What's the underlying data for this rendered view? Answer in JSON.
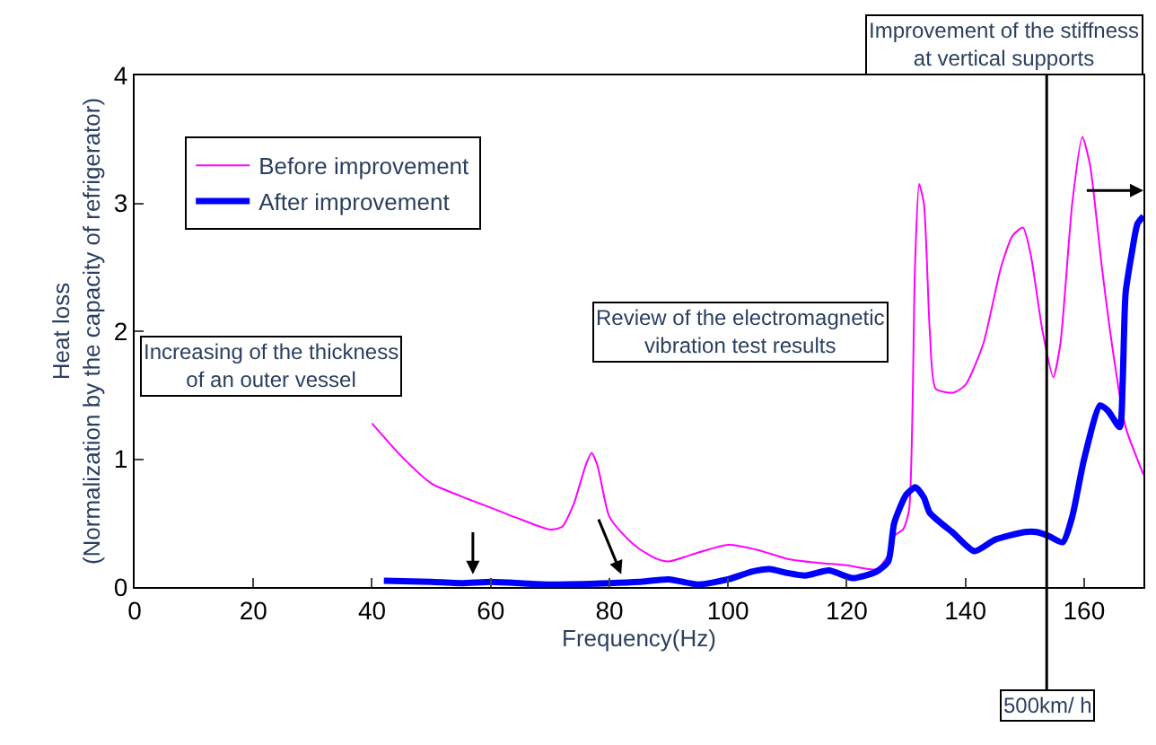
{
  "chart_data": {
    "type": "line",
    "xlabel": "Frequency(Hz)",
    "ylabel": "Heat loss\n(Normalization by the capacity of refrigerator)",
    "xlim": [
      0,
      170
    ],
    "xticks": [
      0,
      20,
      40,
      60,
      80,
      100,
      120,
      140,
      160
    ],
    "ylim": [
      0,
      4
    ],
    "yticks": [
      0,
      1,
      2,
      3,
      4
    ],
    "grid": false,
    "legend": "top left",
    "marker": "none",
    "line_style": "solid",
    "series": [
      {
        "name": "Before improvement",
        "color": "#ff00ff",
        "x": [
          40,
          45,
          50,
          55,
          60,
          65,
          70,
          72,
          74,
          76,
          77,
          78,
          80,
          83,
          85,
          88,
          90,
          95,
          100,
          105,
          110,
          115,
          120,
          125,
          127,
          128,
          129.5,
          130.5,
          131.5,
          132.2,
          133,
          134,
          135,
          138,
          140,
          143,
          146,
          148,
          149.7,
          151,
          153,
          154.8,
          156,
          158,
          159.7,
          161,
          163,
          165,
          167,
          170
        ],
        "values": [
          1.28,
          1.02,
          0.81,
          0.71,
          0.62,
          0.53,
          0.45,
          0.47,
          0.65,
          0.95,
          1.05,
          0.95,
          0.55,
          0.38,
          0.3,
          0.22,
          0.2,
          0.27,
          0.33,
          0.29,
          0.22,
          0.19,
          0.17,
          0.14,
          0.25,
          0.4,
          0.45,
          0.6,
          2.5,
          3.15,
          3.0,
          2.0,
          1.55,
          1.52,
          1.58,
          1.9,
          2.5,
          2.75,
          2.81,
          2.6,
          2.0,
          1.64,
          1.9,
          3.0,
          3.52,
          3.3,
          2.5,
          1.8,
          1.25,
          0.88
        ]
      },
      {
        "name": "After improvement",
        "color": "#0000ff",
        "x": [
          42,
          50,
          55,
          60,
          65,
          70,
          80,
          85,
          90,
          95,
          100,
          104,
          107,
          110,
          113,
          117,
          121,
          125,
          127,
          128,
          130,
          131.6,
          133,
          134,
          138,
          141.5,
          145,
          150,
          152,
          154,
          156.4,
          158,
          160,
          162.7,
          164,
          166,
          166.5,
          167,
          168,
          169,
          170
        ],
        "values": [
          0.05,
          0.04,
          0.03,
          0.04,
          0.03,
          0.02,
          0.03,
          0.04,
          0.06,
          0.02,
          0.06,
          0.12,
          0.14,
          0.11,
          0.09,
          0.13,
          0.07,
          0.12,
          0.2,
          0.5,
          0.72,
          0.78,
          0.7,
          0.58,
          0.42,
          0.28,
          0.37,
          0.43,
          0.43,
          0.4,
          0.35,
          0.55,
          1.0,
          1.42,
          1.38,
          1.25,
          1.6,
          2.3,
          2.6,
          2.84,
          2.9
        ]
      }
    ],
    "ref_lines": [
      {
        "axis": "x",
        "value": 153.7,
        "label": "500km/ h",
        "color": "#000000"
      }
    ],
    "annotations": [
      "Improvement of the stiffness\nat vertical supports",
      "Review of the electromagnetic\nvibration test results",
      "Increasing of the thickness\nof an outer vessel"
    ]
  }
}
